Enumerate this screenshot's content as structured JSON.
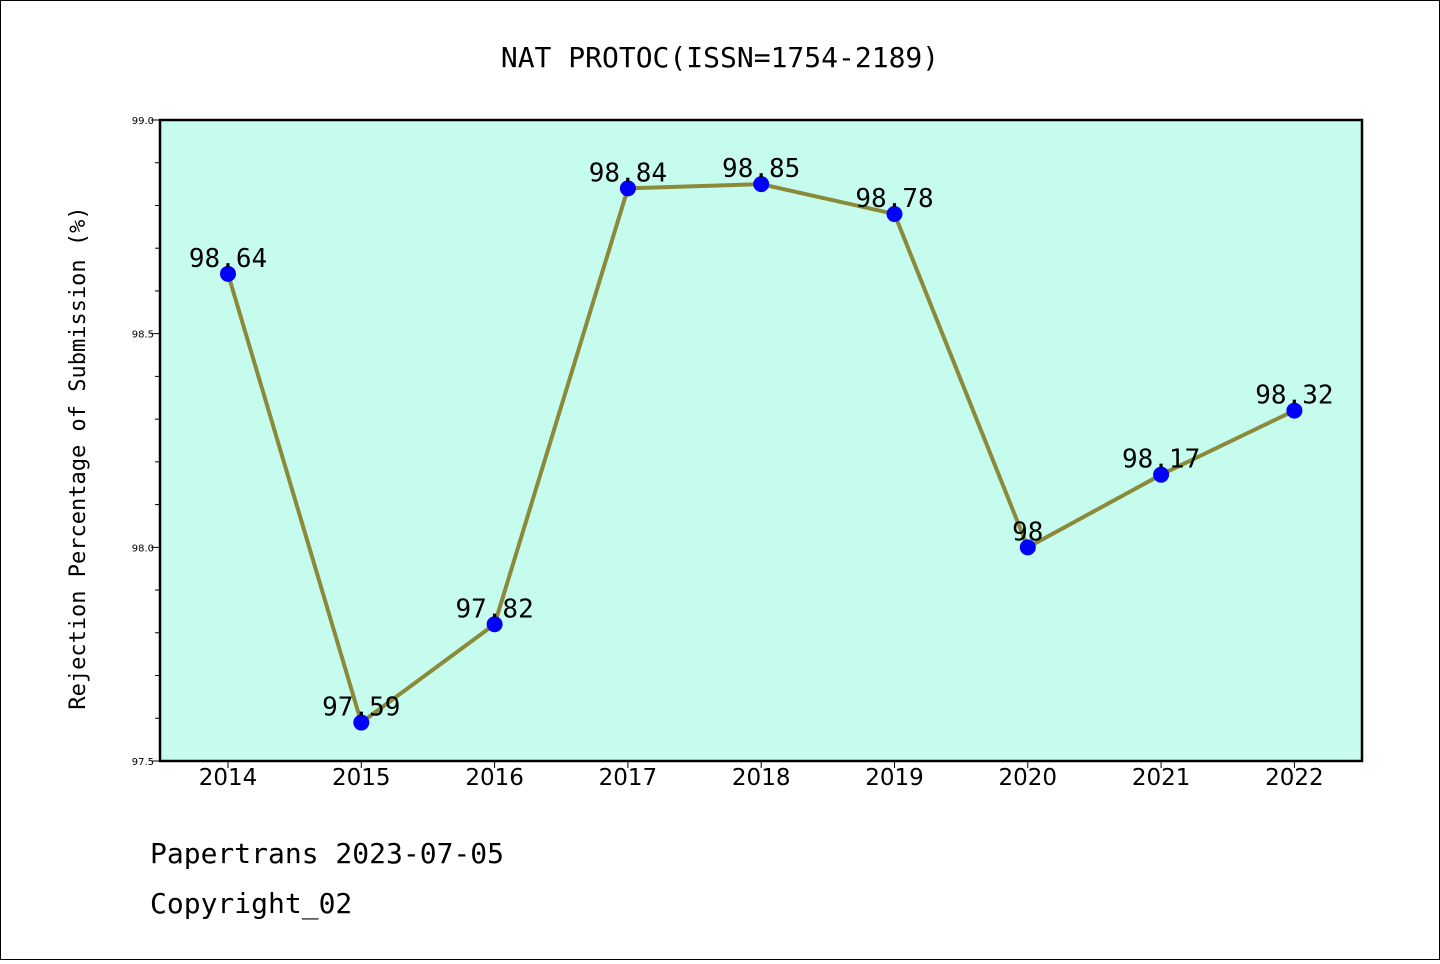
{
  "chart_data": {
    "type": "line",
    "title": "NAT PROTOC(ISSN=1754-2189)",
    "xlabel": "",
    "ylabel": "Rejection Percentage of Submission (%)",
    "categories": [
      "2014",
      "2015",
      "2016",
      "2017",
      "2018",
      "2019",
      "2020",
      "2021",
      "2022"
    ],
    "series": [
      {
        "values": [
          98.64,
          97.59,
          97.82,
          98.84,
          98.85,
          98.78,
          98.0,
          98.17,
          98.32
        ],
        "labels": [
          "98.64",
          "97.59",
          "97.82",
          "98.84",
          "98.85",
          "98.78",
          "98",
          "98.17",
          "98.32"
        ]
      }
    ],
    "ylim": [
      97.5,
      99.0
    ],
    "yticks": [
      "97.5",
      "98.0",
      "98.5",
      "99.0"
    ],
    "grid": false,
    "colors": {
      "plot_background": "#c6fcee",
      "line": "#8b8a3a",
      "marker": "#0000ff"
    }
  },
  "footer": {
    "line1": "Papertrans 2023-07-05",
    "line2": "Copyright_02"
  }
}
